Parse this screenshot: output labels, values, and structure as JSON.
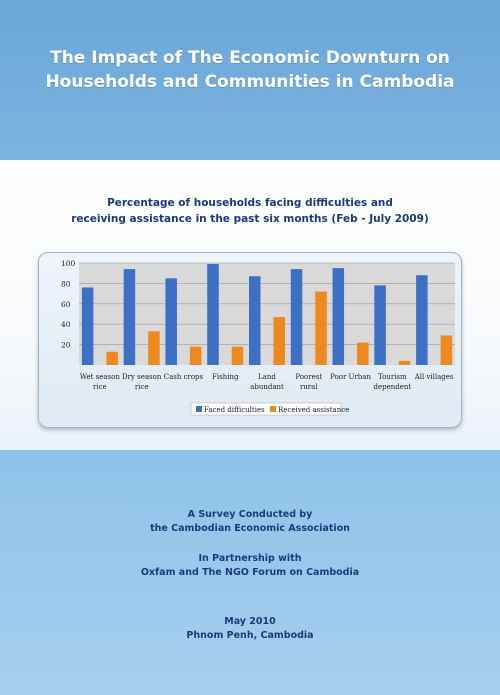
{
  "cover": {
    "title_line1": "The Impact of The Economic Downturn on",
    "title_line2": "Households and Communities in Cambodia",
    "survey_line1": "A Survey Conducted by",
    "survey_line2": "the Cambodian Economic Association",
    "partner_line1": "In Partnership with",
    "partner_line2": "Oxfam  and The NGO Forum on Cambodia",
    "date_line1": "May  2010",
    "date_line2": "Phnom Penh, Cambodia"
  },
  "chart_data": {
    "type": "bar",
    "title_line1": "Percentage of households facing difficulties and",
    "title_line2": "receiving assistance in the past six months (Feb  - July 2009)",
    "categories": [
      [
        "Wet season",
        "rice"
      ],
      [
        "Dry season",
        "rice"
      ],
      [
        "Cash crops"
      ],
      [
        "Fishing"
      ],
      [
        "Land",
        "abundant"
      ],
      [
        "Poorest",
        "rural"
      ],
      [
        "Poor Urban"
      ],
      [
        "Tourism",
        "dependent"
      ],
      [
        "All villages"
      ]
    ],
    "series": [
      {
        "name": "Faced difficulties",
        "color": "#3d6fc4",
        "values": [
          76,
          94,
          85,
          99,
          87,
          94,
          95,
          78,
          88
        ]
      },
      {
        "name": "Received assistance",
        "color": "#ec8a1f",
        "values": [
          13,
          33,
          18,
          18,
          47,
          72,
          22,
          4,
          29
        ]
      }
    ],
    "yticks": [
      "20",
      "40",
      "60",
      "80",
      "100"
    ],
    "ylim": [
      0,
      100
    ],
    "grid": true,
    "legend_position": "bottom"
  }
}
